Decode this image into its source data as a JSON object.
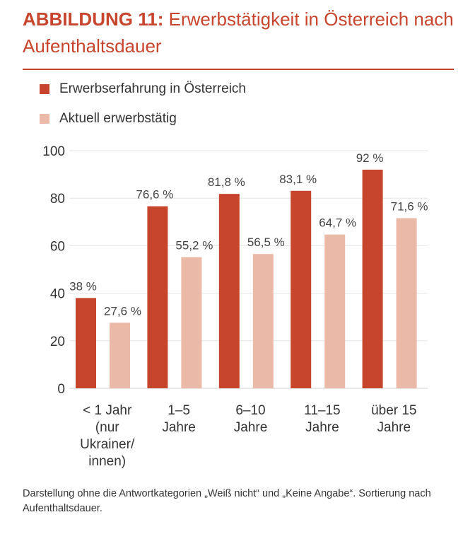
{
  "header": {
    "label": "ABBILDUNG 11:",
    "text": "Erwerbstätigkeit in Österreich nach Aufenthaltsdauer"
  },
  "colors": {
    "accent": "#c8452d",
    "series1": "#c8452d",
    "series2": "#ebb9a7",
    "axis_text": "#333333",
    "grid": "#e6e6e6"
  },
  "chart_data": {
    "type": "bar",
    "categories": [
      [
        "< 1 Jahr",
        "(nur",
        "Ukrainer/",
        "innen)"
      ],
      [
        "1–5",
        "Jahre"
      ],
      [
        "6–10",
        "Jahre"
      ],
      [
        "11–15",
        "Jahre"
      ],
      [
        "über 15",
        "Jahre"
      ]
    ],
    "series": [
      {
        "name": "Erwerbserfahrung in Österreich",
        "values": [
          38,
          76.6,
          81.8,
          83.1,
          92
        ],
        "labels": [
          "38 %",
          "76,6 %",
          "81,8 %",
          "83,1 %",
          "92 %"
        ]
      },
      {
        "name": "Aktuell erwerbstätig",
        "values": [
          27.6,
          55.2,
          56.5,
          64.7,
          71.6
        ],
        "labels": [
          "27,6 %",
          "55,2 %",
          "56,5 %",
          "64,7 %",
          "71,6 %"
        ]
      }
    ],
    "yticks": [
      0,
      20,
      40,
      60,
      80,
      100
    ],
    "ylim": [
      0,
      100
    ],
    "grid": true,
    "legend": "top-left"
  },
  "footnote": "Darstellung ohne die Antwortkategorien „Weiß nicht“ und „Keine Angabe“. Sortierung nach Aufenthaltsdauer."
}
